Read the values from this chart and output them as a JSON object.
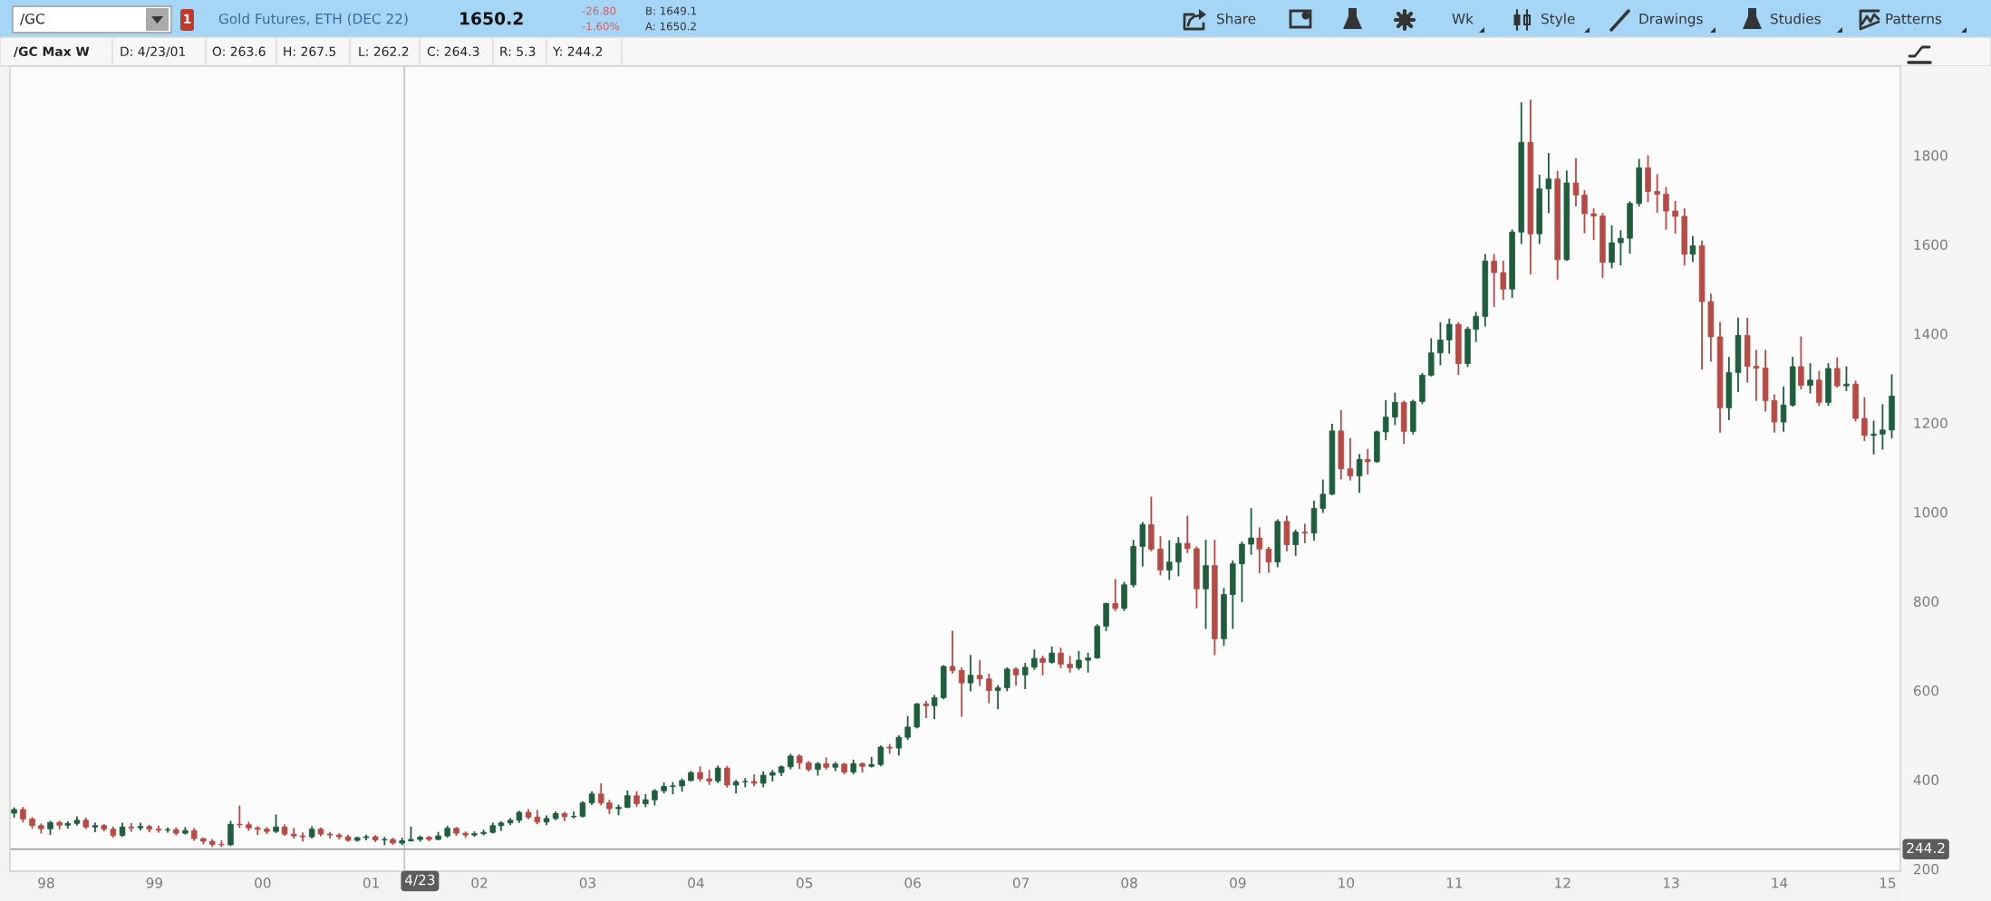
{
  "chart_data": {
    "type": "candlestick",
    "title": "Gold Futures, ETH (DEC 22)",
    "subtitle": "/GC Max W",
    "annotations": [
      "/GC",
      "1",
      "1650.2",
      "-26.80",
      "-1.60%",
      "B: 1649.1",
      "A: 1650.2",
      "Share",
      "Wk",
      "Style",
      "Drawings",
      "Studies",
      "Patterns",
      "D: 4/23/01",
      "O: 263.6",
      "H: 267.5",
      "L: 262.2",
      "C: 264.3",
      "R: 5.3",
      "Y: 244.2"
    ],
    "x": [
      "1997-09-15",
      "1997-10-15",
      "1997-11-15",
      "1997-12-15",
      "1998-01-15",
      "1998-02-15",
      "1998-03-15",
      "1998-04-15",
      "1998-05-15",
      "1998-06-15",
      "1998-07-15",
      "1998-08-15",
      "1998-09-15",
      "1998-10-15",
      "1998-11-15",
      "1998-12-15",
      "1999-01-15",
      "1999-02-15",
      "1999-03-15",
      "1999-04-15",
      "1999-05-15",
      "1999-06-15",
      "1999-07-15",
      "1999-08-15",
      "1999-09-15",
      "1999-10-15",
      "1999-11-15",
      "1999-12-15",
      "2000-01-15",
      "2000-02-15",
      "2000-03-15",
      "2000-04-15",
      "2000-05-15",
      "2000-06-15",
      "2000-07-15",
      "2000-08-15",
      "2000-09-15",
      "2000-10-15",
      "2000-11-15",
      "2000-12-15",
      "2001-01-15",
      "2001-02-15",
      "2001-03-15",
      "2001-04-15",
      "2001-05-15",
      "2001-06-15",
      "2001-07-15",
      "2001-08-15",
      "2001-09-15",
      "2001-10-15",
      "2001-11-15",
      "2001-12-15",
      "2002-01-15",
      "2002-02-15",
      "2002-03-15",
      "2002-04-15",
      "2002-05-15",
      "2002-06-15",
      "2002-07-15",
      "2002-08-15",
      "2002-09-15",
      "2002-10-15",
      "2002-11-15",
      "2002-12-15",
      "2003-01-15",
      "2003-02-15",
      "2003-03-15",
      "2003-04-15",
      "2003-05-15",
      "2003-06-15",
      "2003-07-15",
      "2003-08-15",
      "2003-09-15",
      "2003-10-15",
      "2003-11-15",
      "2003-12-15",
      "2004-01-15",
      "2004-02-15",
      "2004-03-15",
      "2004-04-15",
      "2004-05-15",
      "2004-06-15",
      "2004-07-15",
      "2004-08-15",
      "2004-09-15",
      "2004-10-15",
      "2004-11-15",
      "2004-12-15",
      "2005-01-15",
      "2005-02-15",
      "2005-03-15",
      "2005-04-15",
      "2005-05-15",
      "2005-06-15",
      "2005-07-15",
      "2005-08-15",
      "2005-09-15",
      "2005-10-15",
      "2005-11-15",
      "2005-12-15",
      "2006-01-15",
      "2006-02-15",
      "2006-03-15",
      "2006-04-15",
      "2006-05-15",
      "2006-06-15",
      "2006-07-15",
      "2006-08-15",
      "2006-09-15",
      "2006-10-15",
      "2006-11-15",
      "2006-12-15",
      "2007-01-15",
      "2007-02-15",
      "2007-03-15",
      "2007-04-15",
      "2007-05-15",
      "2007-06-15",
      "2007-07-15",
      "2007-08-15",
      "2007-09-15",
      "2007-10-15",
      "2007-11-15",
      "2007-12-15",
      "2008-01-15",
      "2008-02-15",
      "2008-03-15",
      "2008-04-15",
      "2008-05-15",
      "2008-06-15",
      "2008-07-15",
      "2008-08-15",
      "2008-09-15",
      "2008-10-15",
      "2008-11-15",
      "2008-12-15",
      "2009-01-15",
      "2009-02-15",
      "2009-03-15",
      "2009-04-15",
      "2009-05-15",
      "2009-06-15",
      "2009-07-15",
      "2009-08-15",
      "2009-09-15",
      "2009-10-15",
      "2009-11-15",
      "2009-12-15",
      "2010-01-15",
      "2010-02-15",
      "2010-03-15",
      "2010-04-15",
      "2010-05-15",
      "2010-06-15",
      "2010-07-15",
      "2010-08-15",
      "2010-09-15",
      "2010-10-15",
      "2010-11-15",
      "2010-12-15",
      "2011-01-15",
      "2011-02-15",
      "2011-03-15",
      "2011-04-15",
      "2011-05-15",
      "2011-06-15",
      "2011-07-15",
      "2011-08-15",
      "2011-09-15",
      "2011-10-15",
      "2011-11-15",
      "2011-12-15",
      "2012-01-15",
      "2012-02-15",
      "2012-03-15",
      "2012-04-15",
      "2012-05-15",
      "2012-06-15",
      "2012-07-15",
      "2012-08-15",
      "2012-09-15",
      "2012-10-15",
      "2012-11-15",
      "2012-12-15",
      "2013-01-15",
      "2013-02-15",
      "2013-03-15",
      "2013-04-15",
      "2013-05-15",
      "2013-06-15",
      "2013-07-15",
      "2013-08-15",
      "2013-09-15",
      "2013-10-15",
      "2013-11-15",
      "2013-12-15",
      "2014-01-15",
      "2014-02-15",
      "2014-03-15",
      "2014-04-15",
      "2014-05-15",
      "2014-06-15",
      "2014-07-15",
      "2014-08-15",
      "2014-09-15",
      "2014-10-15",
      "2014-11-15",
      "2014-12-15",
      "2015-01-15"
    ],
    "ohlc": [
      [
        325,
        336,
        317,
        333
      ],
      [
        333,
        337,
        306,
        312
      ],
      [
        312,
        314,
        292,
        297
      ],
      [
        297,
        300,
        281,
        290
      ],
      [
        290,
        306,
        278,
        304
      ],
      [
        304,
        306,
        290,
        298
      ],
      [
        298,
        305,
        292,
        302
      ],
      [
        302,
        316,
        299,
        309
      ],
      [
        309,
        313,
        291,
        294
      ],
      [
        294,
        302,
        284,
        297
      ],
      [
        297,
        299,
        286,
        289
      ],
      [
        289,
        293,
        272,
        275
      ],
      [
        275,
        302,
        274,
        294
      ],
      [
        294,
        301,
        285,
        292
      ],
      [
        292,
        302,
        288,
        295
      ],
      [
        295,
        297,
        284,
        289
      ],
      [
        289,
        295,
        283,
        287
      ],
      [
        287,
        291,
        283,
        288
      ],
      [
        288,
        291,
        277,
        280
      ],
      [
        280,
        292,
        279,
        286
      ],
      [
        286,
        290,
        265,
        268
      ],
      [
        268,
        268,
        257,
        262
      ],
      [
        262,
        265,
        251,
        255
      ],
      [
        255,
        262,
        251,
        254
      ],
      [
        254,
        306,
        253,
        300
      ],
      [
        300,
        340,
        294,
        299
      ],
      [
        299,
        304,
        287,
        292
      ],
      [
        292,
        294,
        278,
        289
      ],
      [
        289,
        292,
        280,
        284
      ],
      [
        284,
        320,
        282,
        294
      ],
      [
        294,
        298,
        276,
        278
      ],
      [
        278,
        290,
        270,
        274
      ],
      [
        274,
        280,
        263,
        272
      ],
      [
        272,
        294,
        270,
        289
      ],
      [
        289,
        291,
        275,
        278
      ],
      [
        278,
        281,
        270,
        276
      ],
      [
        276,
        278,
        268,
        272
      ],
      [
        272,
        275,
        263,
        264
      ],
      [
        264,
        270,
        263,
        270
      ],
      [
        270,
        275,
        266,
        272
      ],
      [
        272,
        274,
        262,
        265
      ],
      [
        265,
        270,
        255,
        266
      ],
      [
        266,
        268,
        256,
        258
      ],
      [
        258,
        268,
        255,
        263
      ],
      [
        263,
        293,
        263,
        266
      ],
      [
        266,
        273,
        263,
        271
      ],
      [
        271,
        272,
        264,
        266
      ],
      [
        266,
        281,
        266,
        274
      ],
      [
        274,
        295,
        272,
        291
      ],
      [
        291,
        292,
        276,
        280
      ],
      [
        280,
        282,
        271,
        276
      ],
      [
        276,
        282,
        274,
        279
      ],
      [
        279,
        286,
        277,
        282
      ],
      [
        282,
        302,
        281,
        297
      ],
      [
        297,
        305,
        287,
        303
      ],
      [
        303,
        312,
        300,
        309
      ],
      [
        309,
        328,
        305,
        327
      ],
      [
        327,
        332,
        313,
        316
      ],
      [
        316,
        330,
        302,
        305
      ],
      [
        305,
        318,
        300,
        313
      ],
      [
        313,
        327,
        311,
        324
      ],
      [
        324,
        326,
        309,
        317
      ],
      [
        317,
        327,
        315,
        318
      ],
      [
        318,
        350,
        317,
        348
      ],
      [
        348,
        372,
        345,
        368
      ],
      [
        368,
        390,
        344,
        348
      ],
      [
        348,
        353,
        325,
        335
      ],
      [
        335,
        342,
        322,
        338
      ],
      [
        338,
        374,
        338,
        364
      ],
      [
        364,
        372,
        341,
        346
      ],
      [
        346,
        366,
        340,
        355
      ],
      [
        355,
        377,
        344,
        375
      ],
      [
        375,
        392,
        371,
        385
      ],
      [
        385,
        393,
        369,
        386
      ],
      [
        386,
        401,
        375,
        398
      ],
      [
        398,
        418,
        398,
        416
      ],
      [
        416,
        428,
        398,
        402
      ],
      [
        402,
        420,
        390,
        397
      ],
      [
        397,
        430,
        394,
        426
      ],
      [
        426,
        429,
        384,
        388
      ],
      [
        388,
        398,
        371,
        395
      ],
      [
        395,
        402,
        385,
        396
      ],
      [
        396,
        410,
        387,
        392
      ],
      [
        392,
        417,
        385,
        410
      ],
      [
        410,
        420,
        398,
        416
      ],
      [
        416,
        430,
        410,
        429
      ],
      [
        429,
        456,
        425,
        453
      ],
      [
        453,
        455,
        426,
        438
      ],
      [
        438,
        440,
        420,
        423
      ],
      [
        423,
        438,
        411,
        436
      ],
      [
        436,
        448,
        424,
        428
      ],
      [
        428,
        438,
        421,
        435
      ],
      [
        435,
        436,
        414,
        417
      ],
      [
        417,
        443,
        414,
        436
      ],
      [
        436,
        437,
        418,
        430
      ],
      [
        430,
        449,
        429,
        434
      ],
      [
        434,
        475,
        432,
        473
      ],
      [
        473,
        478,
        460,
        471
      ],
      [
        471,
        498,
        456,
        495
      ],
      [
        495,
        541,
        491,
        518
      ],
      [
        518,
        570,
        517,
        570
      ],
      [
        570,
        575,
        540,
        566
      ],
      [
        566,
        588,
        538,
        584
      ],
      [
        584,
        655,
        582,
        654
      ],
      [
        654,
        732,
        640,
        645
      ],
      [
        645,
        650,
        543,
        617
      ],
      [
        617,
        678,
        600,
        634
      ],
      [
        634,
        666,
        612,
        626
      ],
      [
        626,
        636,
        573,
        600
      ],
      [
        600,
        610,
        560,
        606
      ],
      [
        606,
        650,
        600,
        648
      ],
      [
        648,
        650,
        613,
        635
      ],
      [
        635,
        660,
        605,
        652
      ],
      [
        652,
        690,
        648,
        672
      ],
      [
        672,
        676,
        636,
        663
      ],
      [
        663,
        697,
        662,
        684
      ],
      [
        684,
        694,
        652,
        659
      ],
      [
        659,
        676,
        642,
        651
      ],
      [
        651,
        687,
        648,
        668
      ],
      [
        668,
        683,
        642,
        673
      ],
      [
        673,
        747,
        673,
        744
      ],
      [
        744,
        795,
        735,
        795
      ],
      [
        795,
        848,
        780,
        784
      ],
      [
        784,
        842,
        780,
        837
      ],
      [
        837,
        936,
        833,
        923
      ],
      [
        923,
        976,
        880,
        972
      ],
      [
        972,
        1033,
        914,
        917
      ],
      [
        917,
        944,
        860,
        870
      ],
      [
        870,
        935,
        850,
        888
      ],
      [
        888,
        942,
        858,
        930
      ],
      [
        930,
        990,
        910,
        918
      ],
      [
        918,
        921,
        786,
        828
      ],
      [
        828,
        936,
        740,
        880
      ],
      [
        880,
        936,
        681,
        716
      ],
      [
        716,
        828,
        702,
        815
      ],
      [
        815,
        890,
        740,
        884
      ],
      [
        884,
        932,
        800,
        928
      ],
      [
        928,
        1007,
        906,
        942
      ],
      [
        942,
        964,
        865,
        917
      ],
      [
        917,
        920,
        866,
        888
      ],
      [
        888,
        982,
        878,
        979
      ],
      [
        979,
        990,
        914,
        927
      ],
      [
        927,
        959,
        904,
        955
      ],
      [
        955,
        972,
        932,
        953
      ],
      [
        953,
        1024,
        938,
        1008
      ],
      [
        1008,
        1071,
        1000,
        1040
      ],
      [
        1040,
        1196,
        1040,
        1182
      ],
      [
        1182,
        1227,
        1075,
        1097
      ],
      [
        1097,
        1164,
        1073,
        1081
      ],
      [
        1081,
        1128,
        1045,
        1118
      ],
      [
        1118,
        1140,
        1086,
        1113
      ],
      [
        1113,
        1181,
        1112,
        1180
      ],
      [
        1180,
        1249,
        1163,
        1213
      ],
      [
        1213,
        1266,
        1197,
        1246
      ],
      [
        1246,
        1248,
        1155,
        1181
      ],
      [
        1181,
        1250,
        1176,
        1248
      ],
      [
        1248,
        1310,
        1244,
        1307
      ],
      [
        1307,
        1388,
        1306,
        1357
      ],
      [
        1357,
        1424,
        1331,
        1386
      ],
      [
        1386,
        1432,
        1357,
        1421
      ],
      [
        1421,
        1424,
        1309,
        1333
      ],
      [
        1333,
        1414,
        1327,
        1410
      ],
      [
        1410,
        1447,
        1383,
        1439
      ],
      [
        1439,
        1577,
        1418,
        1563
      ],
      [
        1563,
        1577,
        1462,
        1537
      ],
      [
        1537,
        1562,
        1478,
        1500
      ],
      [
        1500,
        1632,
        1482,
        1628
      ],
      [
        1628,
        1917,
        1603,
        1829
      ],
      [
        1829,
        1923,
        1535,
        1624
      ],
      [
        1624,
        1755,
        1603,
        1725
      ],
      [
        1725,
        1803,
        1672,
        1747
      ],
      [
        1747,
        1763,
        1523,
        1566
      ],
      [
        1566,
        1764,
        1565,
        1738
      ],
      [
        1738,
        1792,
        1687,
        1711
      ],
      [
        1711,
        1720,
        1627,
        1669
      ],
      [
        1669,
        1679,
        1612,
        1664
      ],
      [
        1664,
        1669,
        1527,
        1560
      ],
      [
        1560,
        1641,
        1548,
        1604
      ],
      [
        1604,
        1630,
        1555,
        1614
      ],
      [
        1614,
        1695,
        1581,
        1692
      ],
      [
        1692,
        1790,
        1687,
        1772
      ],
      [
        1772,
        1798,
        1697,
        1719
      ],
      [
        1719,
        1756,
        1673,
        1713
      ],
      [
        1713,
        1727,
        1635,
        1675
      ],
      [
        1675,
        1696,
        1626,
        1663
      ],
      [
        1663,
        1679,
        1555,
        1578
      ],
      [
        1578,
        1617,
        1563,
        1597
      ],
      [
        1597,
        1607,
        1321,
        1472
      ],
      [
        1472,
        1488,
        1339,
        1393
      ],
      [
        1393,
        1424,
        1180,
        1234
      ],
      [
        1234,
        1346,
        1208,
        1313
      ],
      [
        1313,
        1434,
        1271,
        1396
      ],
      [
        1396,
        1434,
        1292,
        1327
      ],
      [
        1327,
        1362,
        1251,
        1323
      ],
      [
        1323,
        1362,
        1227,
        1250
      ],
      [
        1250,
        1262,
        1180,
        1202
      ],
      [
        1202,
        1280,
        1182,
        1240
      ],
      [
        1240,
        1346,
        1238,
        1326
      ],
      [
        1326,
        1392,
        1277,
        1284
      ],
      [
        1284,
        1332,
        1268,
        1296
      ],
      [
        1296,
        1315,
        1240,
        1246
      ],
      [
        1246,
        1332,
        1240,
        1322
      ],
      [
        1322,
        1345,
        1281,
        1283
      ],
      [
        1283,
        1325,
        1273,
        1287
      ],
      [
        1287,
        1293,
        1205,
        1210
      ],
      [
        1210,
        1256,
        1161,
        1172
      ],
      [
        1172,
        1203,
        1131,
        1175
      ],
      [
        1175,
        1240,
        1142,
        1184
      ],
      [
        1184,
        1307,
        1167,
        1260
      ]
    ],
    "colors": [
      "#1f5e3d",
      "#b84a45",
      "#b84a45",
      "#b84a45",
      "#1f5e3d",
      "#b84a45",
      "#1f5e3d",
      "#1f5e3d",
      "#b84a45",
      "#1f5e3d",
      "#b84a45",
      "#b84a45",
      "#1f5e3d",
      "#b84a45",
      "#1f5e3d",
      "#b84a45",
      "#b84a45",
      "#1f5e3d",
      "#b84a45",
      "#1f5e3d",
      "#b84a45",
      "#b84a45",
      "#b84a45",
      "#b84a45",
      "#1f5e3d",
      "#b84a45",
      "#b84a45",
      "#b84a45",
      "#b84a45",
      "#1f5e3d",
      "#b84a45",
      "#b84a45",
      "#b84a45",
      "#1f5e3d",
      "#b84a45",
      "#b84a45",
      "#b84a45",
      "#b84a45",
      "#1f5e3d",
      "#1f5e3d",
      "#b84a45",
      "#1f5e3d",
      "#b84a45",
      "#1f5e3d",
      "#1f5e3d",
      "#1f5e3d",
      "#b84a45",
      "#1f5e3d",
      "#1f5e3d",
      "#b84a45",
      "#b84a45",
      "#1f5e3d",
      "#1f5e3d",
      "#1f5e3d",
      "#1f5e3d",
      "#1f5e3d",
      "#1f5e3d",
      "#b84a45",
      "#b84a45",
      "#1f5e3d",
      "#1f5e3d",
      "#b84a45",
      "#1f5e3d",
      "#1f5e3d",
      "#1f5e3d",
      "#b84a45",
      "#b84a45",
      "#1f5e3d",
      "#1f5e3d",
      "#b84a45",
      "#1f5e3d",
      "#1f5e3d",
      "#1f5e3d",
      "#1f5e3d",
      "#1f5e3d",
      "#1f5e3d",
      "#b84a45",
      "#b84a45",
      "#1f5e3d",
      "#b84a45",
      "#1f5e3d",
      "#1f5e3d",
      "#b84a45",
      "#1f5e3d",
      "#1f5e3d",
      "#1f5e3d",
      "#1f5e3d",
      "#b84a45",
      "#b84a45",
      "#1f5e3d",
      "#b84a45",
      "#1f5e3d",
      "#b84a45",
      "#1f5e3d",
      "#b84a45",
      "#1f5e3d",
      "#1f5e3d",
      "#b84a45",
      "#1f5e3d",
      "#1f5e3d",
      "#1f5e3d",
      "#b84a45",
      "#1f5e3d",
      "#1f5e3d",
      "#b84a45",
      "#b84a45",
      "#1f5e3d",
      "#b84a45",
      "#b84a45",
      "#1f5e3d",
      "#1f5e3d",
      "#b84a45",
      "#1f5e3d",
      "#1f5e3d",
      "#b84a45",
      "#1f5e3d",
      "#b84a45",
      "#b84a45",
      "#1f5e3d",
      "#1f5e3d",
      "#1f5e3d",
      "#1f5e3d",
      "#b84a45",
      "#1f5e3d",
      "#1f5e3d",
      "#1f5e3d",
      "#b84a45",
      "#b84a45",
      "#1f5e3d",
      "#1f5e3d",
      "#b84a45",
      "#b84a45",
      "#1f5e3d",
      "#b84a45",
      "#1f5e3d",
      "#1f5e3d",
      "#1f5e3d",
      "#1f5e3d",
      "#b84a45",
      "#b84a45",
      "#1f5e3d",
      "#b84a45",
      "#1f5e3d",
      "#b84a45",
      "#1f5e3d",
      "#1f5e3d",
      "#1f5e3d",
      "#b84a45",
      "#b84a45",
      "#1f5e3d",
      "#b84a45",
      "#1f5e3d",
      "#1f5e3d",
      "#1f5e3d",
      "#b84a45",
      "#1f5e3d",
      "#1f5e3d",
      "#1f5e3d",
      "#1f5e3d",
      "#1f5e3d",
      "#b84a45",
      "#1f5e3d",
      "#1f5e3d",
      "#1f5e3d",
      "#b84a45",
      "#b84a45",
      "#1f5e3d",
      "#1f5e3d",
      "#b84a45",
      "#1f5e3d",
      "#1f5e3d",
      "#b84a45",
      "#1f5e3d",
      "#b84a45",
      "#b84a45",
      "#b84a45",
      "#b84a45",
      "#1f5e3d",
      "#1f5e3d",
      "#1f5e3d",
      "#1f5e3d",
      "#b84a45",
      "#b84a45",
      "#b84a45",
      "#b84a45",
      "#b84a45",
      "#1f5e3d",
      "#b84a45",
      "#b84a45",
      "#b84a45",
      "#1f5e3d",
      "#1f5e3d",
      "#b84a45",
      "#b84a45",
      "#b84a45",
      "#b84a45",
      "#1f5e3d",
      "#1f5e3d",
      "#b84a45",
      "#1f5e3d",
      "#b84a45",
      "#1f5e3d",
      "#b84a45",
      "#1f5e3d",
      "#b84a45",
      "#b84a45",
      "#1f5e3d",
      "#1f5e3d",
      "#1f5e3d"
    ],
    "xlim": [
      "1997-09-01",
      "2015-02-13"
    ],
    "xticks": [
      {
        "value": "1998-01-01",
        "label": "98"
      },
      {
        "value": "1999-01-01",
        "label": "99"
      },
      {
        "value": "2000-01-01",
        "label": "00"
      },
      {
        "value": "2001-01-01",
        "label": "01"
      },
      {
        "value": "2002-01-01",
        "label": "02"
      },
      {
        "value": "2003-01-01",
        "label": "03"
      },
      {
        "value": "2004-01-01",
        "label": "04"
      },
      {
        "value": "2005-01-01",
        "label": "05"
      },
      {
        "value": "2006-01-01",
        "label": "06"
      },
      {
        "value": "2007-01-01",
        "label": "07"
      },
      {
        "value": "2008-01-01",
        "label": "08"
      },
      {
        "value": "2009-01-01",
        "label": "09"
      },
      {
        "value": "2010-01-01",
        "label": "10"
      },
      {
        "value": "2011-01-01",
        "label": "11"
      },
      {
        "value": "2012-01-01",
        "label": "12"
      },
      {
        "value": "2013-01-01",
        "label": "13"
      },
      {
        "value": "2014-01-01",
        "label": "14"
      },
      {
        "value": "2015-01-01",
        "label": "15"
      }
    ],
    "ylim": [
      195,
      2000
    ],
    "yticks": [
      200,
      400,
      600,
      800,
      1000,
      1200,
      1400,
      1600,
      1800
    ],
    "ref_lines": [
      {
        "axis": "x",
        "value": "2001-04-23",
        "label": "4/23",
        "color": "#c4c4c4"
      },
      {
        "axis": "y",
        "value": 244.2,
        "label": "244.2",
        "color": "#9a9a9a"
      }
    ]
  }
}
